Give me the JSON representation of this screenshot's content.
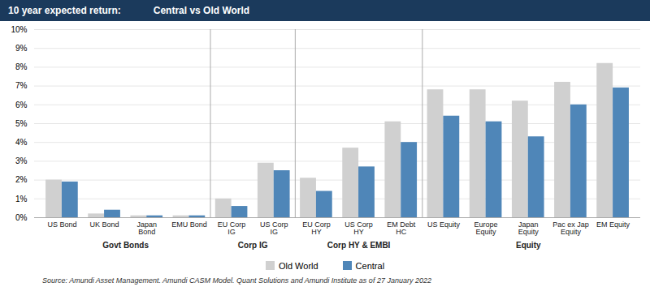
{
  "chart_data": {
    "type": "bar",
    "title": "10 year expected return:",
    "subtitle": "Central vs Old World",
    "source": "Source:  Amundi Asset Management. Amundi CASM Model. Quant Solutions and Amundi Institute as of 27 January 2022",
    "categories": [
      "US Bond",
      "UK Bond",
      "Japan\nBond",
      "EMU Bond",
      "EU Corp\nIG",
      "US Corp\nIG",
      "EU Corp\nHY",
      "US Corp\nHY",
      "EM Debt\nHC",
      "US Equity",
      "Europe\nEquity",
      "Japan\nEquity",
      "Pac ex Jap\nEquity",
      "EM Equity"
    ],
    "groups": [
      {
        "name": "Govt Bonds",
        "categories": [
          "US Bond",
          "UK Bond",
          "Japan\nBond",
          "EMU Bond"
        ]
      },
      {
        "name": "Corp IG",
        "categories": [
          "EU Corp\nIG",
          "US Corp\nIG"
        ]
      },
      {
        "name": "Corp HY & EMBI",
        "categories": [
          "EU Corp\nHY",
          "US Corp\nHY",
          "EM Debt\nHC"
        ]
      },
      {
        "name": "Equity",
        "categories": [
          "US Equity",
          "Europe\nEquity",
          "Japan\nEquity",
          "Pac ex Jap\nEquity",
          "EM Equity"
        ]
      }
    ],
    "series": [
      {
        "name": "Old World",
        "color": "#d0d0d0",
        "values": [
          0.02,
          0.002,
          0.001,
          0.001,
          0.01,
          0.029,
          0.021,
          0.037,
          0.051,
          0.068,
          0.068,
          0.062,
          0.072,
          0.082
        ]
      },
      {
        "name": "Central",
        "color": "#4f86b8",
        "values": [
          0.019,
          0.004,
          0.001,
          0.001,
          0.006,
          0.025,
          0.014,
          0.027,
          0.04,
          0.054,
          0.051,
          0.043,
          0.06,
          0.069
        ]
      }
    ],
    "ylim": [
      0,
      0.1
    ],
    "yticks": [
      {
        "value": 0.0,
        "label": "0%"
      },
      {
        "value": 0.01,
        "label": "1%"
      },
      {
        "value": 0.02,
        "label": "2%"
      },
      {
        "value": 0.03,
        "label": "3%"
      },
      {
        "value": 0.04,
        "label": "4%"
      },
      {
        "value": 0.05,
        "label": "5%"
      },
      {
        "value": 0.06,
        "label": "6%"
      },
      {
        "value": 0.07,
        "label": "7%"
      },
      {
        "value": 0.08,
        "label": "8%"
      },
      {
        "value": 0.09,
        "label": "9%"
      },
      {
        "value": 0.1,
        "label": "10%"
      }
    ],
    "grid": true,
    "legend": "bottom"
  }
}
